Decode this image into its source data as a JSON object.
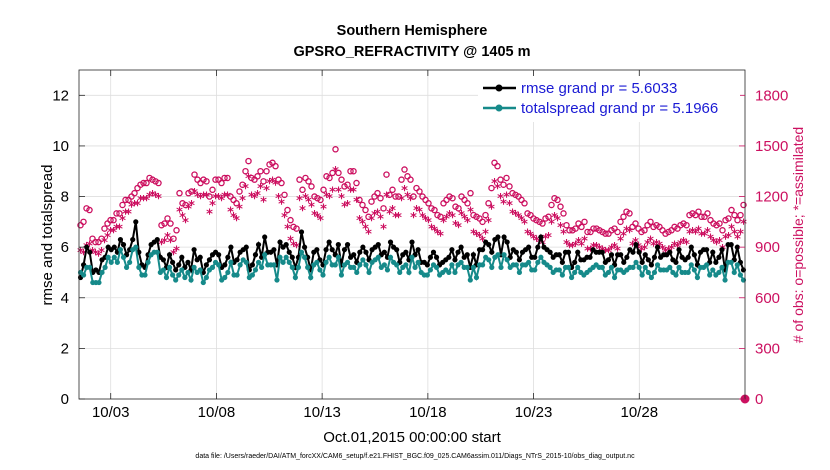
{
  "chart_data": {
    "type": "line",
    "title": "Southern Hemisphere",
    "subtitle": "GPSRO_REFRACTIVITY @ 1405 m",
    "xlabel": "Oct.01,2015 00:00:00 start",
    "ylabel": "rmse and totalspread",
    "ylabel_right": "# of obs: o=possible; *=assimilated",
    "footnote": "data file: /Users/raeder/DAI/ATM_forcXX/CAM6_setup/f.e21.FHIST_BGC.f09_025.CAM6assim.011/Diags_NTrS_2015-10/obs_diag_output.nc",
    "xlim": [
      1.5,
      33.0
    ],
    "ylim": [
      0,
      13
    ],
    "ylim_right": [
      0,
      1950
    ],
    "x_ticks": [
      3,
      8,
      13,
      18,
      23,
      28
    ],
    "x_tick_labels": [
      "10/03",
      "10/08",
      "10/13",
      "10/18",
      "10/23",
      "10/28"
    ],
    "y_ticks": [
      0,
      2,
      4,
      6,
      8,
      10,
      12
    ],
    "y_tick_labels": [
      "0",
      "2",
      "4",
      "6",
      "8",
      "10",
      "12"
    ],
    "y_ticks_right": [
      0,
      300,
      600,
      900,
      1200,
      1500,
      1800
    ],
    "y_tick_labels_right": [
      "0",
      "300",
      "600",
      "900",
      "1200",
      "1500",
      "1800"
    ],
    "grid": true,
    "legend_position": "top-right",
    "series": [
      {
        "name": "rmse grand pr = 5.6033",
        "color": "#000000",
        "axis": "left",
        "values": [
          4.8,
          5.3,
          6.0,
          5.8,
          5.0,
          5.1,
          5.0,
          5.5,
          5.6,
          6.0,
          5.9,
          6.0,
          5.8,
          6.3,
          6.1,
          5.7,
          5.9,
          6.3,
          7.0,
          5.8,
          5.3,
          5.2,
          5.7,
          6.1,
          6.2,
          6.3,
          5.6,
          5.5,
          5.2,
          5.7,
          5.4,
          5.1,
          5.3,
          5.6,
          5.2,
          5.4,
          5.1,
          5.9,
          5.5,
          5.6,
          5.0,
          5.3,
          5.5,
          5.7,
          5.8,
          5.7,
          5.2,
          5.3,
          5.6,
          6.0,
          5.4,
          5.5,
          5.8,
          5.9,
          6.0,
          5.1,
          5.3,
          5.7,
          6.1,
          5.6,
          6.4,
          5.8,
          5.8,
          5.9,
          5.3,
          6.2,
          6.0,
          6.1,
          5.8,
          5.6,
          5.2,
          5.6,
          6.6,
          6.0,
          5.6,
          5.1,
          5.8,
          5.9,
          5.5,
          5.3,
          5.9,
          6.2,
          5.9,
          5.7,
          6.1,
          5.3,
          5.9,
          6.1,
          5.6,
          5.7,
          5.4,
          5.8,
          6.0,
          5.8,
          5.5,
          5.9,
          6.0,
          6.1,
          5.7,
          5.8,
          5.6,
          6.2,
          6.0,
          5.9,
          5.4,
          5.7,
          5.8,
          5.5,
          6.2,
          5.7,
          5.9,
          5.4,
          5.4,
          5.3,
          5.6,
          5.8,
          5.6,
          5.3,
          5.4,
          5.5,
          5.6,
          5.9,
          5.5,
          5.8,
          6.0,
          5.6,
          5.7,
          5.2,
          5.7,
          5.3,
          5.9,
          5.9,
          6.2,
          6.1,
          5.8,
          6.3,
          6.4,
          5.7,
          6.4,
          6.2,
          5.6,
          5.9,
          5.8,
          5.5,
          5.8,
          5.9,
          6.0,
          5.6,
          5.6,
          6.0,
          6.4,
          6.0,
          5.9,
          5.8,
          5.6,
          5.7,
          5.7,
          5.4,
          5.8,
          5.8,
          5.2,
          5.4,
          5.8,
          5.5,
          5.5,
          5.6,
          5.6,
          5.9,
          5.8,
          5.8,
          5.8,
          5.4,
          5.5,
          5.7,
          5.3,
          5.7,
          5.7,
          5.4,
          5.6,
          5.9,
          5.8,
          6.1,
          5.8,
          5.4,
          5.7,
          5.5,
          5.3,
          5.6,
          6.0,
          5.6,
          5.7,
          5.7,
          5.8,
          5.5,
          5.4,
          5.9,
          5.6,
          5.5,
          5.6,
          6.0,
          5.7,
          5.3,
          5.8,
          5.9,
          5.9,
          5.4,
          5.8,
          5.4,
          5.6,
          5.9,
          5.1,
          6.1,
          6.1,
          5.5,
          6.0,
          5.4,
          5.1
        ]
      },
      {
        "name": "totalspread grand pr = 5.1966",
        "color": "#168a8a",
        "axis": "left",
        "values": [
          5.0,
          4.9,
          5.2,
          5.2,
          4.6,
          4.6,
          4.6,
          5.0,
          5.2,
          5.6,
          5.4,
          5.6,
          5.4,
          5.9,
          5.6,
          5.2,
          5.4,
          5.9,
          6.0,
          5.2,
          4.9,
          4.9,
          5.4,
          5.7,
          5.8,
          5.8,
          5.0,
          5.1,
          4.8,
          5.2,
          4.9,
          4.7,
          4.9,
          5.1,
          4.8,
          5.0,
          4.7,
          5.2,
          5.0,
          5.1,
          4.6,
          4.8,
          5.1,
          5.2,
          5.4,
          5.3,
          4.7,
          4.8,
          5.0,
          5.4,
          4.9,
          4.9,
          5.3,
          5.5,
          5.4,
          4.8,
          4.9,
          5.1,
          5.4,
          5.2,
          5.7,
          5.3,
          5.3,
          5.3,
          4.7,
          5.6,
          5.4,
          5.6,
          5.4,
          5.2,
          4.8,
          5.2,
          5.8,
          5.6,
          5.2,
          4.8,
          5.3,
          5.4,
          5.1,
          4.9,
          5.4,
          5.6,
          5.3,
          5.3,
          5.6,
          4.9,
          5.3,
          5.4,
          5.2,
          5.2,
          5.0,
          5.3,
          5.5,
          5.3,
          5.0,
          5.4,
          5.5,
          5.6,
          5.2,
          5.3,
          5.1,
          5.6,
          5.4,
          5.3,
          5.0,
          5.2,
          5.3,
          5.0,
          5.6,
          5.2,
          5.4,
          5.0,
          4.9,
          4.9,
          5.1,
          5.3,
          5.2,
          4.9,
          5.0,
          5.1,
          5.0,
          5.3,
          5.0,
          5.3,
          5.4,
          5.2,
          5.2,
          4.7,
          5.2,
          4.8,
          5.3,
          5.3,
          5.6,
          5.5,
          5.2,
          5.6,
          5.7,
          5.2,
          5.7,
          5.5,
          5.2,
          5.3,
          5.3,
          5.0,
          5.3,
          5.3,
          5.4,
          5.1,
          5.1,
          5.4,
          5.6,
          5.4,
          5.3,
          5.2,
          5.0,
          5.1,
          5.1,
          4.9,
          5.2,
          5.2,
          4.8,
          5.0,
          5.2,
          5.0,
          4.9,
          5.0,
          5.1,
          5.2,
          5.3,
          5.2,
          5.2,
          4.9,
          5.0,
          5.2,
          4.8,
          5.1,
          5.1,
          5.0,
          5.1,
          5.2,
          5.2,
          5.4,
          5.2,
          4.9,
          5.2,
          5.0,
          4.8,
          5.0,
          5.3,
          5.1,
          5.1,
          5.1,
          5.2,
          5.0,
          4.9,
          5.2,
          5.0,
          5.0,
          5.0,
          5.3,
          5.1,
          4.8,
          5.2,
          5.2,
          5.3,
          4.9,
          5.1,
          4.9,
          5.0,
          5.2,
          4.7,
          5.4,
          5.4,
          5.0,
          5.3,
          4.9,
          4.7
        ]
      },
      {
        "name": "# obs possible",
        "marker": "o",
        "color": "#cc1060",
        "axis": "right",
        "values": [
          1030,
          1050,
          1130,
          1120,
          950,
          930,
          930,
          950,
          1010,
          1040,
          1060,
          1060,
          1100,
          1100,
          1150,
          1180,
          1180,
          1200,
          1220,
          1250,
          1270,
          1280,
          1280,
          1310,
          1300,
          1290,
          1280,
          1030,
          1040,
          1070,
          1040,
          950,
          1000,
          1220,
          1160,
          1150,
          1220,
          1230,
          1330,
          1300,
          1280,
          1300,
          1290,
          1200,
          1240,
          1300,
          1300,
          1280,
          1310,
          1310,
          1200,
          1180,
          1160,
          1230,
          1270,
          1350,
          1410,
          1310,
          1300,
          1320,
          1350,
          1290,
          1350,
          1390,
          1400,
          1380,
          1300,
          1280,
          1210,
          1120,
          1060,
          1020,
          1010,
          1300,
          1240,
          1310,
          1290,
          1260,
          1200,
          1190,
          1180,
          1240,
          1320,
          1310,
          1340,
          1480,
          1340,
          1300,
          1260,
          1270,
          1350,
          1350,
          1280,
          1180,
          1150,
          1120,
          1080,
          1170,
          1200,
          1220,
          1190,
          1130,
          1330,
          1210,
          1240,
          1200,
          1200,
          1300,
          1360,
          1320,
          1300,
          1200,
          1250,
          1230,
          1200,
          1180,
          1160,
          1130,
          1120,
          1090,
          1080,
          1160,
          1180,
          1200,
          1190,
          1140,
          1130,
          1200,
          1180,
          1160,
          1220,
          1090,
          1080,
          1070,
          1050,
          1090,
          1160,
          1250,
          1400,
          1380,
          1300,
          1270,
          1310,
          1260,
          1220,
          1210,
          1200,
          1180,
          1160,
          1100,
          1090,
          1070,
          1060,
          1050,
          1040,
          1070,
          1080,
          1150,
          1190,
          1180,
          1140,
          1100,
          1030,
          1000,
          1000,
          1010,
          1040,
          1020,
          1050,
          990,
          990,
          1010,
          1010,
          1000,
          990,
          980,
          980,
          1000,
          1010,
          990,
          1050,
          1080,
          1110,
          1100,
          1020,
          1040,
          1010,
          990,
          1000,
          1030,
          1050,
          1020,
          1030,
          1020,
          1000,
          980,
          990,
          1000,
          1020,
          1010,
          1030,
          1040,
          1030,
          1090,
          1100,
          1090,
          1110,
          1080,
          1080,
          1100,
          1060,
          1040,
          1030,
          1040,
          1000,
          1060,
          1070,
          1120,
          1090,
          1060,
          1090,
          1150
        ]
      },
      {
        "name": "# obs assimilated",
        "marker": "*",
        "color": "#cc1060",
        "axis": "right",
        "values": [
          870,
          860,
          900,
          910,
          870,
          860,
          850,
          870,
          930,
          960,
          990,
          990,
          1010,
          1010,
          1060,
          1100,
          1100,
          1140,
          1150,
          1150,
          1180,
          1180,
          1180,
          1200,
          1210,
          1200,
          1190,
          920,
          930,
          960,
          930,
          860,
          880,
          1110,
          1080,
          1050,
          1130,
          1150,
          1220,
          1200,
          1190,
          1200,
          1200,
          1100,
          1150,
          1190,
          1190,
          1180,
          1200,
          1200,
          1110,
          1080,
          1060,
          1130,
          1180,
          1250,
          1310,
          1200,
          1190,
          1210,
          1250,
          1170,
          1240,
          1280,
          1290,
          1270,
          1190,
          1160,
          1080,
          1010,
          940,
          910,
          900,
          1180,
          1120,
          1190,
          1170,
          1140,
          1090,
          1080,
          1060,
          1130,
          1200,
          1190,
          1230,
          1350,
          1230,
          1190,
          1140,
          1150,
          1230,
          1230,
          1170,
          1060,
          1040,
          1010,
          980,
          1060,
          1090,
          1100,
          1070,
          1010,
          1200,
          1100,
          1120,
          1080,
          1080,
          1180,
          1240,
          1200,
          1180,
          1080,
          1120,
          1110,
          1080,
          1060,
          1050,
          1010,
          1000,
          980,
          970,
          1050,
          1070,
          1090,
          1080,
          1030,
          1020,
          1090,
          1070,
          1050,
          1110,
          980,
          970,
          960,
          940,
          980,
          1050,
          1130,
          1280,
          1250,
          1190,
          1160,
          1200,
          1150,
          1100,
          1090,
          1080,
          1060,
          1040,
          980,
          970,
          950,
          940,
          930,
          920,
          950,
          960,
          1040,
          1080,
          1060,
          1020,
          980,
          920,
          900,
          900,
          910,
          930,
          910,
          940,
          880,
          880,
          900,
          900,
          890,
          880,
          870,
          870,
          890,
          900,
          880,
          940,
          970,
          1000,
          990,
          910,
          930,
          900,
          880,
          890,
          920,
          940,
          910,
          920,
          910,
          890,
          870,
          880,
          890,
          910,
          900,
          920,
          930,
          920,
          980,
          990,
          980,
          1000,
          970,
          970,
          990,
          950,
          930,
          920,
          930,
          890,
          950,
          960,
          1010,
          980,
          950,
          980,
          1040
        ]
      }
    ]
  }
}
